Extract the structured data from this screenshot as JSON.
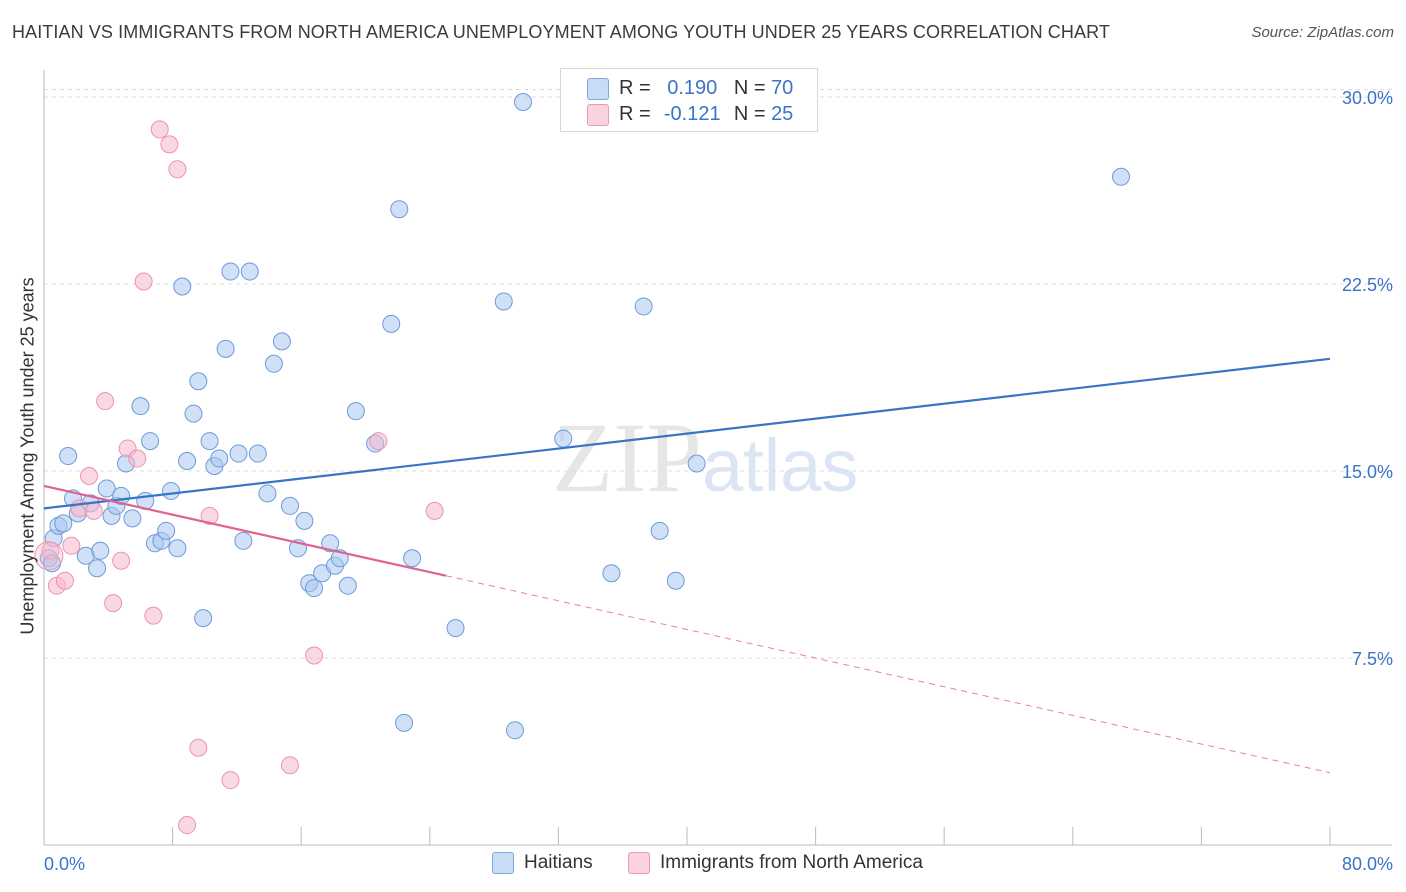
{
  "title": "HAITIAN VS IMMIGRANTS FROM NORTH AMERICA UNEMPLOYMENT AMONG YOUTH UNDER 25 YEARS CORRELATION CHART",
  "source": "Source: ZipAtlas.com",
  "watermark": {
    "part1": "ZIP",
    "part2": "atlas"
  },
  "legend_box": {
    "rows": [
      {
        "r_label": "R =",
        "r_value": "0.190",
        "n_label": "N =",
        "n_value": "70",
        "color": "#a9c8f0"
      },
      {
        "r_label": "R =",
        "r_value": "-0.121",
        "n_label": "N =",
        "n_value": "25",
        "color": "#f6b8cc"
      }
    ]
  },
  "bottom_legend": [
    {
      "label": "Haitians",
      "color": "#a9c8f0"
    },
    {
      "label": "Immigrants from North America",
      "color": "#f6b8cc"
    }
  ],
  "colors": {
    "blue": "#3a74c8",
    "blue_fill": "#a9c8f0",
    "pink": "#e0628f",
    "pink_fill": "#f6b8cc",
    "grid": "#dddddd",
    "tick_label": "#3a74c8"
  },
  "chart_data": {
    "type": "scatter",
    "title": "HAITIAN VS IMMIGRANTS FROM NORTH AMERICA UNEMPLOYMENT AMONG YOUTH UNDER 25 YEARS CORRELATION CHART",
    "xlabel": "",
    "ylabel": "Unemployment Among Youth under 25 years",
    "xlim": [
      0,
      80
    ],
    "ylim": [
      0,
      30.5
    ],
    "x_tick_labels": [
      "0.0%",
      "80.0%"
    ],
    "y_ticks": [
      7.5,
      15.0,
      22.5,
      30.0
    ],
    "y_tick_labels": [
      "7.5%",
      "15.0%",
      "22.5%",
      "30.0%"
    ],
    "grid": "horizontal dashed",
    "legend_position": "top-center",
    "series": [
      {
        "name": "Haitians",
        "r": 0.19,
        "n": 70,
        "trend": {
          "x": [
            0,
            80
          ],
          "y": [
            13.5,
            19.5
          ],
          "style": "solid"
        },
        "points": [
          [
            0.3,
            11.5
          ],
          [
            0.6,
            12.3
          ],
          [
            0.9,
            12.8
          ],
          [
            1.2,
            12.9
          ],
          [
            1.5,
            15.6
          ],
          [
            1.8,
            13.9
          ],
          [
            2.1,
            13.3
          ],
          [
            2.6,
            11.6
          ],
          [
            2.9,
            13.7
          ],
          [
            3.3,
            11.1
          ],
          [
            3.5,
            11.8
          ],
          [
            3.9,
            14.3
          ],
          [
            4.2,
            13.2
          ],
          [
            4.5,
            13.6
          ],
          [
            4.8,
            14.0
          ],
          [
            5.1,
            15.3
          ],
          [
            5.5,
            13.1
          ],
          [
            6.0,
            17.6
          ],
          [
            6.3,
            13.8
          ],
          [
            6.6,
            16.2
          ],
          [
            6.9,
            12.1
          ],
          [
            7.3,
            12.2
          ],
          [
            7.6,
            12.6
          ],
          [
            7.9,
            14.2
          ],
          [
            8.3,
            11.9
          ],
          [
            8.6,
            22.4
          ],
          [
            8.9,
            15.4
          ],
          [
            9.3,
            17.3
          ],
          [
            9.6,
            18.6
          ],
          [
            9.9,
            9.1
          ],
          [
            10.3,
            16.2
          ],
          [
            10.6,
            15.2
          ],
          [
            10.9,
            15.5
          ],
          [
            11.3,
            19.9
          ],
          [
            11.6,
            23.0
          ],
          [
            12.1,
            15.7
          ],
          [
            12.4,
            12.2
          ],
          [
            12.8,
            23.0
          ],
          [
            13.3,
            15.7
          ],
          [
            13.9,
            14.1
          ],
          [
            14.3,
            19.3
          ],
          [
            14.8,
            20.2
          ],
          [
            15.3,
            13.6
          ],
          [
            15.8,
            11.9
          ],
          [
            16.2,
            13.0
          ],
          [
            16.5,
            10.5
          ],
          [
            16.8,
            10.3
          ],
          [
            17.3,
            10.9
          ],
          [
            17.8,
            12.1
          ],
          [
            18.1,
            11.2
          ],
          [
            18.4,
            11.5
          ],
          [
            18.9,
            10.4
          ],
          [
            19.4,
            17.4
          ],
          [
            20.6,
            16.1
          ],
          [
            21.6,
            20.9
          ],
          [
            22.1,
            25.5
          ],
          [
            22.4,
            4.9
          ],
          [
            22.9,
            11.5
          ],
          [
            25.6,
            8.7
          ],
          [
            28.6,
            21.8
          ],
          [
            29.3,
            4.6
          ],
          [
            29.8,
            29.8
          ],
          [
            32.3,
            16.3
          ],
          [
            35.3,
            10.9
          ],
          [
            37.3,
            21.6
          ],
          [
            38.3,
            12.6
          ],
          [
            39.3,
            10.6
          ],
          [
            40.6,
            15.3
          ],
          [
            67.0,
            26.8
          ],
          [
            0.5,
            11.3
          ]
        ]
      },
      {
        "name": "Immigrants from North America",
        "r": -0.121,
        "n": 25,
        "trend": {
          "x": [
            0,
            25
          ],
          "y": [
            14.4,
            10.8
          ],
          "style": "solid",
          "extension": {
            "x": [
              25,
              80
            ],
            "y": [
              10.8,
              2.9
            ],
            "style": "dashed"
          }
        },
        "points": [
          [
            0.4,
            11.8
          ],
          [
            0.8,
            10.4
          ],
          [
            1.3,
            10.6
          ],
          [
            1.7,
            12.0
          ],
          [
            2.2,
            13.5
          ],
          [
            2.8,
            14.8
          ],
          [
            3.1,
            13.4
          ],
          [
            3.8,
            17.8
          ],
          [
            4.3,
            9.7
          ],
          [
            4.8,
            11.4
          ],
          [
            5.2,
            15.9
          ],
          [
            5.8,
            15.5
          ],
          [
            6.2,
            22.6
          ],
          [
            6.8,
            9.2
          ],
          [
            7.2,
            28.7
          ],
          [
            7.8,
            28.1
          ],
          [
            8.3,
            27.1
          ],
          [
            8.9,
            0.8
          ],
          [
            9.6,
            3.9
          ],
          [
            10.3,
            13.2
          ],
          [
            11.6,
            2.6
          ],
          [
            15.3,
            3.2
          ],
          [
            16.8,
            7.6
          ],
          [
            20.8,
            16.2
          ],
          [
            24.3,
            13.4
          ]
        ]
      }
    ]
  },
  "axis_labels": {
    "y_title": "Unemployment Among Youth under 25 years",
    "x_min": "0.0%",
    "x_max": "80.0%"
  }
}
